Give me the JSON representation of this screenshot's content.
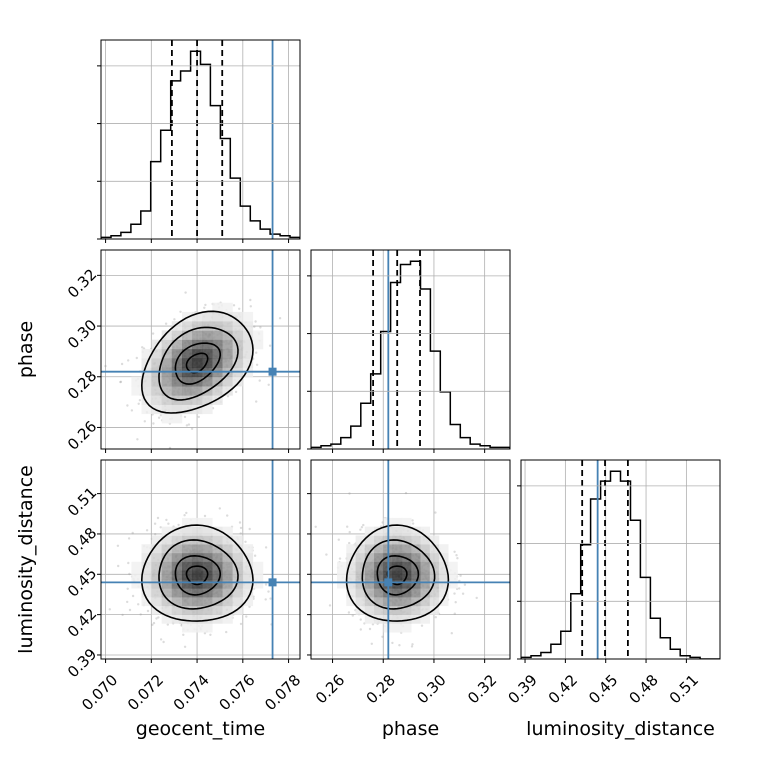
{
  "chart_data": {
    "type": "corner",
    "colors": {
      "truth": "#4682b4",
      "line": "#000000",
      "grid": "#b0b0b0",
      "scatter": "#9a9a9a"
    },
    "params": [
      {
        "name": "geocent_time",
        "label": "geocent_time",
        "range": [
          0.0698,
          0.0785
        ],
        "ticks": [
          0.07,
          0.072,
          0.074,
          0.076,
          0.078
        ],
        "tick_labels": [
          "0.070",
          "0.072",
          "0.074",
          "0.076",
          "0.078"
        ],
        "truth": 0.0773,
        "quantiles": [
          0.0729,
          0.074,
          0.0751
        ]
      },
      {
        "name": "phase",
        "label": "phase",
        "range": [
          0.2515,
          0.33
        ],
        "ticks": [
          0.26,
          0.28,
          0.3,
          0.32
        ],
        "tick_labels": [
          "0.26",
          "0.28",
          "0.30",
          "0.32"
        ],
        "truth": 0.282,
        "quantiles": [
          0.276,
          0.2855,
          0.2945
        ]
      },
      {
        "name": "luminosity_distance",
        "label": "luminosity_distance",
        "range": [
          0.387,
          0.535
        ],
        "ticks": [
          0.39,
          0.42,
          0.45,
          0.48,
          0.51
        ],
        "tick_labels": [
          "0.39",
          "0.42",
          "0.45",
          "0.48",
          "0.51"
        ],
        "truth": 0.444,
        "quantiles": [
          0.4325,
          0.4495,
          0.4665
        ]
      }
    ],
    "histograms": [
      {
        "param": "geocent_time",
        "lo": 0.0698,
        "hi": 0.0785,
        "counts": [
          1,
          2,
          4,
          9,
          17,
          47,
          66,
          96,
          102,
          114,
          106,
          81,
          61,
          37,
          20,
          11,
          6,
          3,
          2,
          1
        ]
      },
      {
        "param": "phase",
        "lo": 0.2515,
        "hi": 0.33,
        "counts": [
          1,
          2,
          3,
          7,
          14,
          28,
          46,
          72,
          102,
          113,
          115,
          98,
          60,
          35,
          15,
          7,
          3,
          2,
          1,
          1
        ]
      },
      {
        "param": "luminosity_distance",
        "lo": 0.387,
        "hi": 0.535,
        "counts": [
          1,
          2,
          4,
          9,
          17,
          40,
          70,
          98,
          109,
          115,
          109,
          85,
          50,
          25,
          13,
          6,
          2,
          1,
          0,
          0
        ]
      }
    ],
    "scatter_2d": [
      {
        "x": "geocent_time",
        "y": "phase",
        "mean": [
          0.074,
          0.2855
        ],
        "sd": [
          0.00115,
          0.0095
        ],
        "rho": 0.35
      },
      {
        "x": "geocent_time",
        "y": "luminosity_distance",
        "mean": [
          0.074,
          0.4495
        ],
        "sd": [
          0.00115,
          0.017
        ],
        "rho": 0.0
      },
      {
        "x": "phase",
        "y": "luminosity_distance",
        "mean": [
          0.2855,
          0.4495
        ],
        "sd": [
          0.0095,
          0.017
        ],
        "rho": 0.0
      }
    ],
    "grid": true
  }
}
